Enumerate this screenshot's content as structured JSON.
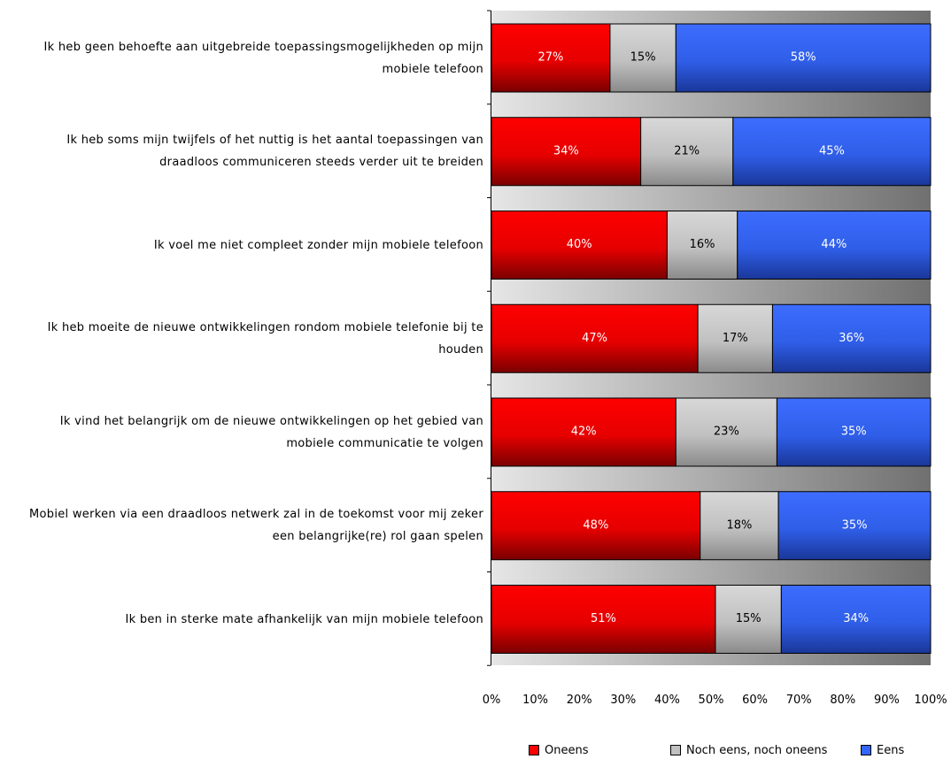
{
  "chart_data": {
    "type": "bar",
    "orientation": "horizontal",
    "stacked": "percent",
    "categories": [
      "Ik heb geen behoefte aan uitgebreide toepassingsmogelijkheden op mijn mobiele telefoon",
      "Ik heb soms mijn twijfels of het nuttig is het aantal toepassingen van draadloos communiceren steeds verder uit te breiden",
      "Ik voel me niet compleet zonder mijn mobiele telefoon",
      "Ik heb moeite de nieuwe ontwikkelingen rondom mobiele telefonie bij te houden",
      "Ik vind het belangrijk om de nieuwe ontwikkelingen op het gebied van mobiele communicatie te volgen",
      "Mobiel werken via een draadloos netwerk zal in de toekomst voor mij zeker een belangrijke(re) rol gaan spelen",
      "Ik ben in sterke mate afhankelijk van mijn mobiele telefoon"
    ],
    "series": [
      {
        "name": "Oneens",
        "color": "#ff0000",
        "values": [
          27,
          34,
          40,
          47,
          42,
          48,
          51
        ]
      },
      {
        "name": "Noch eens, noch oneens",
        "color": "#c0c0c0",
        "values": [
          15,
          21,
          16,
          17,
          23,
          18,
          15
        ]
      },
      {
        "name": "Eens",
        "color": "#3366ff",
        "values": [
          58,
          45,
          44,
          36,
          35,
          35,
          34
        ]
      }
    ],
    "data_labels": [
      [
        "27%",
        "15%",
        "58%"
      ],
      [
        "34%",
        "21%",
        "45%"
      ],
      [
        "40%",
        "16%",
        "44%"
      ],
      [
        "47%",
        "17%",
        "36%"
      ],
      [
        "42%",
        "23%",
        "35%"
      ],
      [
        "48%",
        "18%",
        "35%"
      ],
      [
        "51%",
        "15%",
        "34%"
      ]
    ],
    "xaxis": {
      "ticks": [
        "0%",
        "10%",
        "20%",
        "30%",
        "40%",
        "50%",
        "60%",
        "70%",
        "80%",
        "90%",
        "100%"
      ],
      "range": [
        0,
        100
      ]
    },
    "legend_position": "bottom-right",
    "grid": false,
    "plot_background": "gradient-gray"
  }
}
